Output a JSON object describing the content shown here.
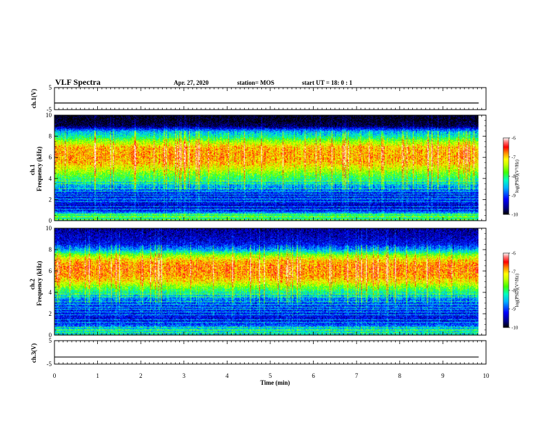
{
  "header": {
    "title": "VLF Spectra",
    "date": "Apr. 27, 2020",
    "station": "station= MOS",
    "start": "start  UT  =   18: 0  : 1"
  },
  "chart_data": [
    {
      "type": "line",
      "panel": "ch1-waveform",
      "ylabel": "ch.1(V)",
      "ylim": [
        -5,
        5
      ],
      "yticks": [
        "5",
        "-5"
      ],
      "xlim": [
        0,
        10
      ],
      "series": [
        {
          "x": [
            0,
            9.83
          ],
          "values": [
            -2,
            -2
          ]
        }
      ]
    },
    {
      "type": "heatmap",
      "panel": "ch1-spectrogram",
      "ylabel": "ch.1\nFrequency (kHz)",
      "ylim": [
        0,
        10
      ],
      "yticks": [
        "0",
        "2",
        "4",
        "6",
        "8",
        "10"
      ],
      "xlim": [
        0,
        10
      ],
      "data_xmax": 9.83,
      "colorbar": {
        "label": "log(PSD)(V²/Hz)",
        "range": [
          -10,
          -6
        ],
        "ticks": [
          "-6",
          "-7",
          "-8",
          "-9",
          "-10"
        ]
      },
      "freq_profile_log_psd": [
        {
          "f": 0.0,
          "v": -8.3
        },
        {
          "f": 0.5,
          "v": -8.0
        },
        {
          "f": 1.0,
          "v": -9.2
        },
        {
          "f": 1.5,
          "v": -9.4
        },
        {
          "f": 2.0,
          "v": -9.1
        },
        {
          "f": 2.5,
          "v": -9.3
        },
        {
          "f": 3.0,
          "v": -8.8
        },
        {
          "f": 3.5,
          "v": -8.5
        },
        {
          "f": 4.0,
          "v": -8.0
        },
        {
          "f": 4.5,
          "v": -7.7
        },
        {
          "f": 5.0,
          "v": -7.3
        },
        {
          "f": 5.5,
          "v": -7.0
        },
        {
          "f": 6.0,
          "v": -6.9
        },
        {
          "f": 6.5,
          "v": -6.9
        },
        {
          "f": 7.0,
          "v": -7.0
        },
        {
          "f": 7.5,
          "v": -7.5
        },
        {
          "f": 8.0,
          "v": -8.2
        },
        {
          "f": 8.5,
          "v": -8.6
        },
        {
          "f": 9.0,
          "v": -9.8
        },
        {
          "f": 9.5,
          "v": -10.0
        },
        {
          "f": 10.0,
          "v": -10.0
        }
      ]
    },
    {
      "type": "heatmap",
      "panel": "ch2-spectrogram",
      "ylabel": "ch.2\nFrequency (kHz)",
      "ylim": [
        0,
        10
      ],
      "yticks": [
        "0",
        "2",
        "4",
        "6",
        "8",
        "10"
      ],
      "xlim": [
        0,
        10
      ],
      "data_xmax": 9.83,
      "colorbar": {
        "label": "log(PSD)(V²/Hz)",
        "range": [
          -10,
          -6
        ],
        "ticks": [
          "-6",
          "-7",
          "-8",
          "-9",
          "-10"
        ]
      },
      "freq_profile_log_psd": [
        {
          "f": 0.0,
          "v": -8.6
        },
        {
          "f": 0.5,
          "v": -8.3
        },
        {
          "f": 1.0,
          "v": -9.0
        },
        {
          "f": 1.5,
          "v": -9.3
        },
        {
          "f": 2.0,
          "v": -9.2
        },
        {
          "f": 2.5,
          "v": -9.1
        },
        {
          "f": 3.0,
          "v": -9.0
        },
        {
          "f": 3.5,
          "v": -8.7
        },
        {
          "f": 4.0,
          "v": -8.2
        },
        {
          "f": 4.5,
          "v": -7.7
        },
        {
          "f": 5.0,
          "v": -7.2
        },
        {
          "f": 5.5,
          "v": -6.9
        },
        {
          "f": 6.0,
          "v": -6.8
        },
        {
          "f": 6.5,
          "v": -6.8
        },
        {
          "f": 7.0,
          "v": -7.0
        },
        {
          "f": 7.5,
          "v": -7.6
        },
        {
          "f": 8.0,
          "v": -8.6
        },
        {
          "f": 8.5,
          "v": -9.2
        },
        {
          "f": 9.0,
          "v": -9.4
        },
        {
          "f": 9.5,
          "v": -9.5
        },
        {
          "f": 10.0,
          "v": -9.6
        }
      ]
    },
    {
      "type": "line",
      "panel": "ch3-waveform",
      "ylabel": "ch.3(V)",
      "ylim": [
        -5,
        5
      ],
      "yticks": [
        "5",
        "-5"
      ],
      "xlim": [
        0,
        10
      ],
      "xlabel": "Time  (min)",
      "xticks": [
        "0",
        "1",
        "2",
        "3",
        "4",
        "5",
        "6",
        "7",
        "8",
        "9",
        "10"
      ],
      "series": [
        {
          "x": [
            0,
            9.83
          ],
          "values": [
            -2,
            -2
          ]
        }
      ]
    }
  ]
}
